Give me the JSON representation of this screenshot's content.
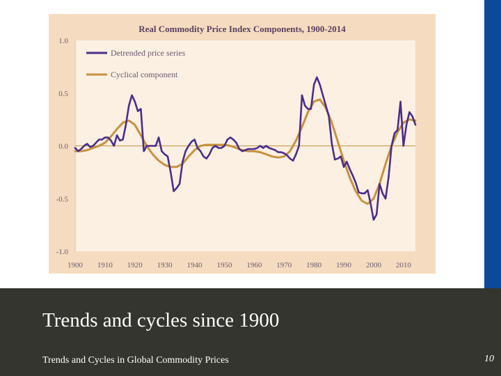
{
  "slide": {
    "title": "Trends and cycles since 1900",
    "subtitle": "Trends and Cycles in Global Commodity Prices",
    "page_number": "10"
  },
  "colors": {
    "accent_bar": "#0b4a9b",
    "footer_bg": "#35352f",
    "chart_bg": "#f5dcc0",
    "plot_bg": "#fbf0e2",
    "detrended": "#4a2d8c",
    "cyclical": "#c8913e",
    "zero_line": "#c8913e"
  },
  "chart_data": {
    "type": "line",
    "title": "Real Commodity Price Index Components, 1900-2014",
    "xlabel": "",
    "ylabel": "",
    "xlim": [
      1900,
      2014
    ],
    "ylim": [
      -1.0,
      1.0
    ],
    "xticks": [
      1900,
      1910,
      1920,
      1930,
      1940,
      1950,
      1960,
      1970,
      1980,
      1990,
      2000,
      2010
    ],
    "yticks": [
      "1.0",
      "0.5",
      "0.0",
      "-0.5",
      "-1.0"
    ],
    "ytick_values": [
      1.0,
      0.5,
      0.0,
      -0.5,
      -1.0
    ],
    "grid": false,
    "legend_position": "top-left",
    "series": [
      {
        "name": "Detrended price series",
        "color": "#4a2d8c",
        "x": [
          1900,
          1901,
          1902,
          1903,
          1904,
          1905,
          1906,
          1907,
          1908,
          1909,
          1910,
          1911,
          1912,
          1913,
          1914,
          1915,
          1916,
          1917,
          1918,
          1919,
          1920,
          1921,
          1922,
          1923,
          1924,
          1925,
          1926,
          1927,
          1928,
          1929,
          1930,
          1931,
          1932,
          1933,
          1934,
          1935,
          1936,
          1937,
          1938,
          1939,
          1940,
          1941,
          1942,
          1943,
          1944,
          1945,
          1946,
          1947,
          1948,
          1949,
          1950,
          1951,
          1952,
          1953,
          1954,
          1955,
          1956,
          1957,
          1958,
          1959,
          1960,
          1961,
          1962,
          1963,
          1964,
          1965,
          1966,
          1967,
          1968,
          1969,
          1970,
          1971,
          1972,
          1973,
          1974,
          1975,
          1976,
          1977,
          1978,
          1979,
          1980,
          1981,
          1982,
          1983,
          1984,
          1985,
          1986,
          1987,
          1988,
          1989,
          1990,
          1991,
          1992,
          1993,
          1994,
          1995,
          1996,
          1997,
          1998,
          1999,
          2000,
          2001,
          2002,
          2003,
          2004,
          2005,
          2006,
          2007,
          2008,
          2009,
          2010,
          2011,
          2012,
          2013,
          2014
        ],
        "y": [
          -0.02,
          -0.05,
          -0.03,
          0.0,
          0.02,
          -0.01,
          0.0,
          0.03,
          0.06,
          0.06,
          0.08,
          0.08,
          0.05,
          0.0,
          0.1,
          0.05,
          0.06,
          0.2,
          0.38,
          0.48,
          0.42,
          0.33,
          0.35,
          -0.05,
          0.0,
          0.0,
          0.0,
          0.0,
          0.08,
          -0.05,
          -0.08,
          -0.1,
          -0.25,
          -0.43,
          -0.4,
          -0.36,
          -0.15,
          -0.05,
          0.0,
          0.04,
          0.06,
          -0.02,
          -0.05,
          -0.1,
          -0.12,
          -0.08,
          -0.02,
          0.0,
          -0.02,
          -0.02,
          0.0,
          0.06,
          0.08,
          0.06,
          0.03,
          -0.03,
          -0.05,
          -0.04,
          -0.03,
          -0.03,
          -0.03,
          -0.02,
          0.0,
          -0.02,
          0.0,
          -0.02,
          -0.03,
          -0.04,
          -0.06,
          -0.06,
          -0.07,
          -0.09,
          -0.12,
          -0.14,
          -0.08,
          0.0,
          0.48,
          0.38,
          0.35,
          0.35,
          0.58,
          0.65,
          0.58,
          0.48,
          0.38,
          0.28,
          0.02,
          -0.13,
          -0.12,
          -0.1,
          -0.2,
          -0.15,
          -0.22,
          -0.28,
          -0.35,
          -0.44,
          -0.45,
          -0.45,
          -0.42,
          -0.55,
          -0.7,
          -0.65,
          -0.36,
          -0.45,
          -0.5,
          -0.3,
          0.0,
          0.12,
          0.15,
          0.42,
          0.0,
          0.2,
          0.32,
          0.28,
          0.2
        ]
      },
      {
        "name": "Cyclical component",
        "color": "#c8913e",
        "x": [
          1900,
          1902,
          1904,
          1906,
          1908,
          1910,
          1912,
          1914,
          1916,
          1918,
          1920,
          1922,
          1924,
          1926,
          1928,
          1930,
          1932,
          1934,
          1936,
          1938,
          1940,
          1942,
          1944,
          1946,
          1948,
          1950,
          1952,
          1954,
          1956,
          1958,
          1960,
          1962,
          1964,
          1966,
          1968,
          1970,
          1972,
          1974,
          1976,
          1978,
          1980,
          1982,
          1984,
          1986,
          1988,
          1990,
          1992,
          1994,
          1996,
          1998,
          2000,
          2002,
          2004,
          2006,
          2008,
          2010,
          2012,
          2014
        ],
        "y": [
          -0.05,
          -0.05,
          -0.04,
          -0.02,
          0.0,
          0.03,
          0.09,
          0.16,
          0.22,
          0.24,
          0.2,
          0.1,
          0.0,
          -0.08,
          -0.14,
          -0.18,
          -0.2,
          -0.2,
          -0.17,
          -0.1,
          -0.04,
          0.0,
          0.01,
          0.01,
          0.01,
          0.01,
          0.0,
          -0.02,
          -0.04,
          -0.05,
          -0.05,
          -0.06,
          -0.08,
          -0.1,
          -0.11,
          -0.1,
          -0.05,
          0.05,
          0.18,
          0.32,
          0.42,
          0.44,
          0.36,
          0.22,
          0.04,
          -0.14,
          -0.3,
          -0.43,
          -0.52,
          -0.55,
          -0.5,
          -0.36,
          -0.17,
          0.0,
          0.13,
          0.22,
          0.25,
          0.24
        ]
      }
    ]
  }
}
